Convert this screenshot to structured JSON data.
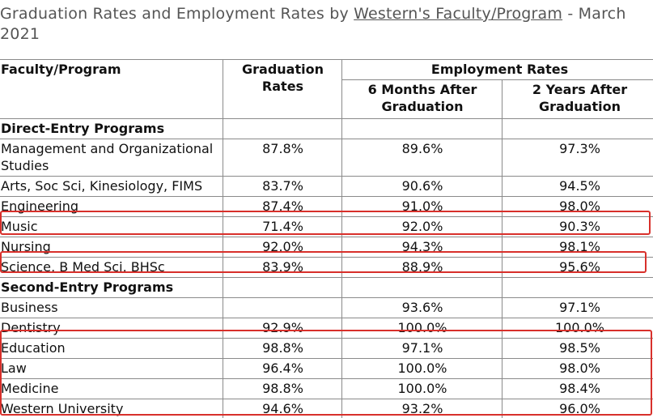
{
  "title": {
    "text": "Graduation Rates and Employment Rates by",
    "link": "Western's Faculty/Program",
    "suffix": "- March 2021"
  },
  "table": {
    "headers": {
      "program": "Faculty/Program",
      "graduation": "Graduation Rates",
      "employment": "Employment Rates",
      "six_months": "6 Months After Graduation",
      "two_years": "2 Years After Graduation"
    },
    "rows": [
      [
        "Direct-Entry Programs"
      ],
      [
        "Management and Organizational Studies",
        "87.8%",
        "89.6%",
        "97.3%"
      ],
      [
        "Arts, Soc Sci, Kinesiology, FIMS",
        "83.7%",
        "90.6%",
        "94.5%"
      ],
      [
        "Engineering",
        "87.4%",
        "91.0%",
        "98.0%"
      ],
      [
        "Music",
        "71.4%",
        "92.0%",
        "90.3%"
      ],
      [
        "Nursing",
        "92.0%",
        "94.3%",
        "98.1%"
      ],
      [
        "Science, B Med Sci, BHSc",
        "83.9%",
        "88.9%",
        "95.6%"
      ],
      [
        "Second-Entry Programs"
      ],
      [
        "Business",
        null,
        "93.6%",
        "97.1%"
      ],
      [
        "Dentistry",
        "92.9%",
        "100.0%",
        "100.0%"
      ],
      [
        "Education",
        "98.8%",
        "97.1%",
        "98.5%"
      ],
      [
        "Law",
        "96.4%",
        "100.0%",
        "98.0%"
      ],
      [
        "Medicine",
        "98.8%",
        "100.0%",
        "98.4%"
      ],
      [
        "Western University",
        "94.6%",
        "93.2%",
        "96.0%"
      ]
    ]
  }
}
